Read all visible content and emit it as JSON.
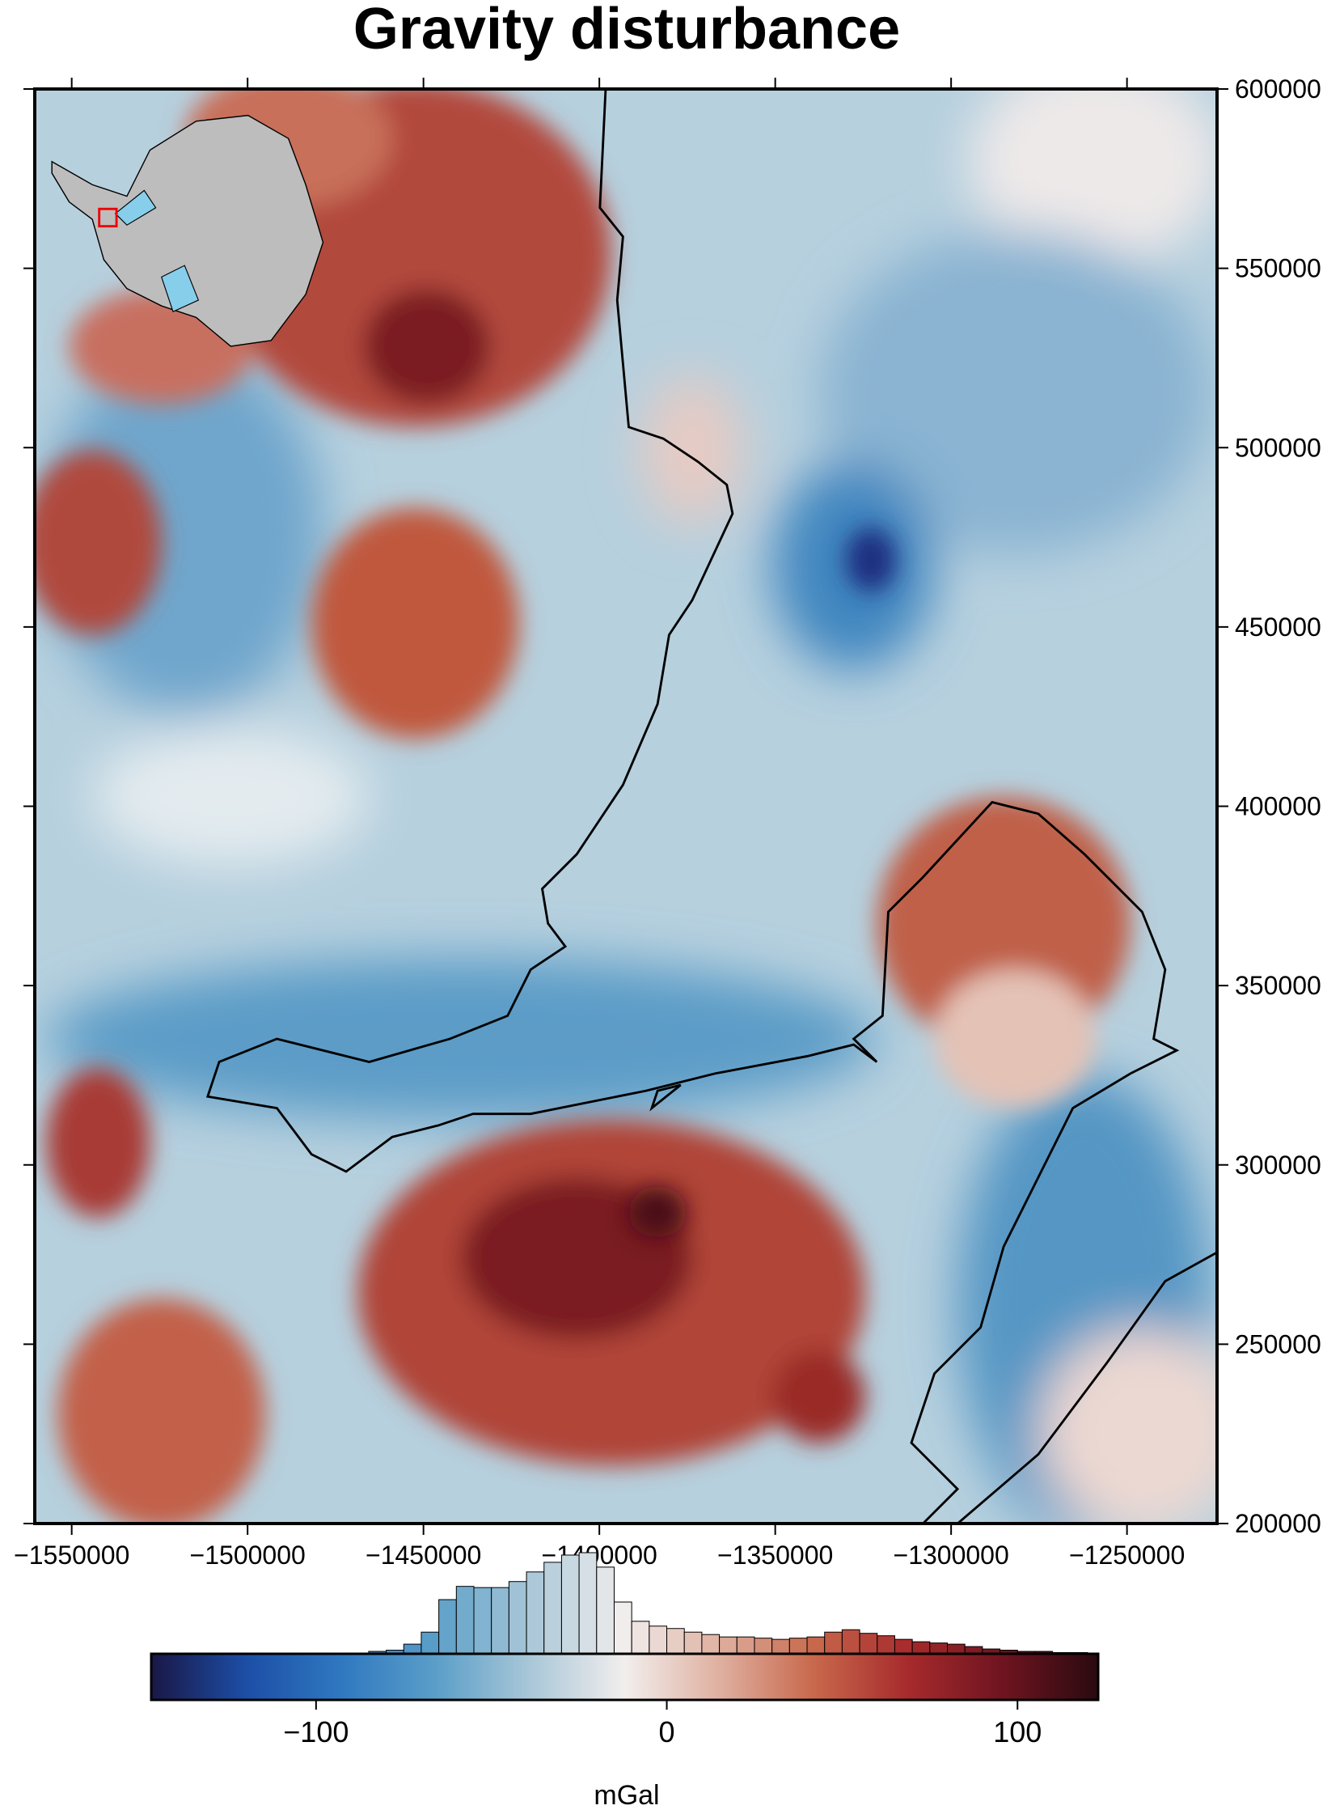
{
  "chart_data": {
    "type": "map",
    "title": "Gravity disturbance",
    "xlim": [
      -1560500,
      -1224400
    ],
    "ylim": [
      200000,
      600000
    ],
    "xticks": [
      {
        "value": -1550000,
        "label": "−1550000"
      },
      {
        "value": -1500000,
        "label": "−1500000"
      },
      {
        "value": -1450000,
        "label": "−1450000"
      },
      {
        "value": -1400000,
        "label": "−1400000"
      },
      {
        "value": -1350000,
        "label": "−1350000"
      },
      {
        "value": -1300000,
        "label": "−1300000"
      },
      {
        "value": -1250000,
        "label": "−1250000"
      }
    ],
    "yticks": [
      200000,
      250000,
      300000,
      350000,
      400000,
      450000,
      500000,
      550000,
      600000
    ],
    "colorbar": {
      "label": "mGal",
      "clim": [
        -147,
        123
      ],
      "ticks": [
        {
          "value": -100,
          "label": "−100"
        },
        0,
        100
      ],
      "colorscale": [
        "#1a1746",
        "#1c4ea6",
        "#2f78c0",
        "#5a9ec8",
        "#a9c7d8",
        "#f2eeed",
        "#dfb0a0",
        "#c8684c",
        "#a62a2c",
        "#6e1420",
        "#2a0a10"
      ]
    },
    "histogram": {
      "bins": [
        -85,
        -80,
        -75,
        -70,
        -65,
        -60,
        -55,
        -50,
        -45,
        -40,
        -35,
        -30,
        -25,
        -20,
        -15,
        -10,
        -5,
        0,
        5,
        10,
        15,
        20,
        25,
        30,
        35,
        40,
        45,
        50,
        55,
        60,
        65,
        70,
        75,
        80,
        85,
        90,
        95,
        100,
        105,
        110,
        115,
        120
      ],
      "counts": [
        2,
        3,
        8,
        18,
        45,
        56,
        55,
        55,
        60,
        68,
        76,
        82,
        84,
        72,
        43,
        27,
        23,
        21,
        18,
        16,
        14,
        14,
        13,
        12,
        13,
        14,
        18,
        20,
        17,
        15,
        12,
        10,
        9,
        8,
        6,
        4,
        3,
        2,
        2,
        1,
        1
      ]
    }
  }
}
